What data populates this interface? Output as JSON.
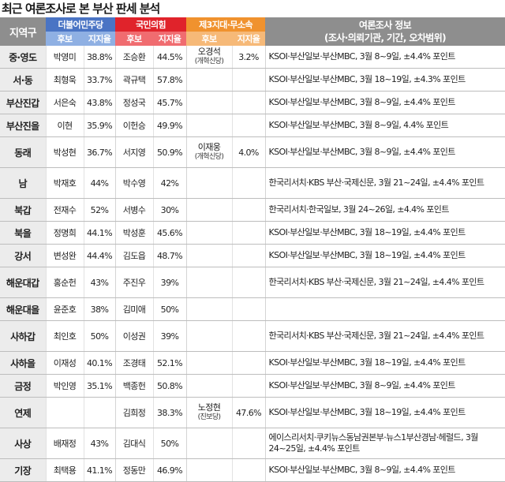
{
  "title": "최근 여론조사로 본 부산 판세 분석",
  "headers": {
    "region": "지역구",
    "dem": "더불어민주당",
    "ppp": "국민의힘",
    "third": "제3지대·무소속",
    "info_line1": "여론조사 정보",
    "info_line2": "(조사·의뢰기관, 기간, 오차범위)",
    "candidate": "후보",
    "support": "지지율"
  },
  "colors": {
    "dem": "#4a74c4",
    "ppp": "#e0232b",
    "third": "#f0922e",
    "header_gray": "#8e8e8e"
  },
  "rows": [
    {
      "region": "중·영도",
      "dem_name": "박영미",
      "dem_pct": "38.8%",
      "ppp_name": "조승환",
      "ppp_pct": "44.5%",
      "third_name": "오경석",
      "third_party": "(개혁신당)",
      "third_pct": "3.2%",
      "info": "KSOI·부산일보·부산MBC, 3월 8~9일, ±4.4% 포인트"
    },
    {
      "region": "서·동",
      "dem_name": "최형욱",
      "dem_pct": "33.7%",
      "ppp_name": "곽규택",
      "ppp_pct": "57.8%",
      "third_name": "",
      "third_party": "",
      "third_pct": "",
      "info": "KSOI·부산일보·부산MBC, 3월 18~19일, ±4.3% 포인트"
    },
    {
      "region": "부산진갑",
      "dem_name": "서은숙",
      "dem_pct": "43.8%",
      "ppp_name": "정성국",
      "ppp_pct": "45.7%",
      "third_name": "",
      "third_party": "",
      "third_pct": "",
      "info": "KSOI·부산일보·부산MBC, 3월 8~9일, ±4.4% 포인트"
    },
    {
      "region": "부산진을",
      "dem_name": "이현",
      "dem_pct": "35.9%",
      "ppp_name": "이헌승",
      "ppp_pct": "49.9%",
      "third_name": "",
      "third_party": "",
      "third_pct": "",
      "info": "KSOI·부산일보·부산MBC, 3월 8~9일, 4.4% 포인트"
    },
    {
      "region": "동래",
      "dem_name": "박성현",
      "dem_pct": "36.7%",
      "ppp_name": "서지영",
      "ppp_pct": "50.9%",
      "third_name": "이재웅",
      "third_party": "(개혁신당)",
      "third_pct": "4.0%",
      "info": "KSOI·부산일보·부산MBC, 3월 8~9일, ±4.4% 포인트",
      "tall": true
    },
    {
      "region": "남",
      "dem_name": "박재호",
      "dem_pct": "44%",
      "ppp_name": "박수영",
      "ppp_pct": "42%",
      "third_name": "",
      "third_party": "",
      "third_pct": "",
      "info": "한국리서치·KBS 부산·국제신문, 3월 21~24일, ±4.4% 포인트",
      "tall": true
    },
    {
      "region": "북갑",
      "dem_name": "전재수",
      "dem_pct": "52%",
      "ppp_name": "서병수",
      "ppp_pct": "30%",
      "third_name": "",
      "third_party": "",
      "third_pct": "",
      "info": "한국리서치·한국일보, 3월 24~26일, ±4.4% 포인트"
    },
    {
      "region": "북을",
      "dem_name": "정명희",
      "dem_pct": "44.1%",
      "ppp_name": "박성훈",
      "ppp_pct": "45.6%",
      "third_name": "",
      "third_party": "",
      "third_pct": "",
      "info": "KSOI·부산일보·부산MBC, 3월 18~19일, ±4.4% 포인트"
    },
    {
      "region": "강서",
      "dem_name": "변성완",
      "dem_pct": "44.4%",
      "ppp_name": "김도읍",
      "ppp_pct": "48.7%",
      "third_name": "",
      "third_party": "",
      "third_pct": "",
      "info": "KSOI·부산일보·부산MBC, 3월 18~19일, ±4.4% 포인트"
    },
    {
      "region": "해운대갑",
      "dem_name": "홍순헌",
      "dem_pct": "43%",
      "ppp_name": "주진우",
      "ppp_pct": "39%",
      "third_name": "",
      "third_party": "",
      "third_pct": "",
      "info": "한국리서치·KBS 부산·국제신문, 3월 21~24일, ±4.4% 포인트",
      "tall": true
    },
    {
      "region": "해운대을",
      "dem_name": "윤준호",
      "dem_pct": "38%",
      "ppp_name": "김미애",
      "ppp_pct": "50%",
      "third_name": "",
      "third_party": "",
      "third_pct": "",
      "info": ""
    },
    {
      "region": "사하갑",
      "dem_name": "최인호",
      "dem_pct": "50%",
      "ppp_name": "이성권",
      "ppp_pct": "39%",
      "third_name": "",
      "third_party": "",
      "third_pct": "",
      "info": "한국리서치·KBS 부산·국제신문, 3월 21~24일, ±4.4% 포인트",
      "tall": true
    },
    {
      "region": "사하을",
      "dem_name": "이재성",
      "dem_pct": "40.1%",
      "ppp_name": "조경태",
      "ppp_pct": "52.1%",
      "third_name": "",
      "third_party": "",
      "third_pct": "",
      "info": "KSOI·부산일보·부산MBC, 3월 18~19일, ±4.4% 포인트"
    },
    {
      "region": "금정",
      "dem_name": "박인영",
      "dem_pct": "35.1%",
      "ppp_name": "백종헌",
      "ppp_pct": "50.8%",
      "third_name": "",
      "third_party": "",
      "third_pct": "",
      "info": "KSOI·부산일보·부산MBC, 3월 8~9일, ±4.4% 포인트"
    },
    {
      "region": "연제",
      "dem_name": "",
      "dem_pct": "",
      "ppp_name": "김희정",
      "ppp_pct": "38.3%",
      "third_name": "노정현",
      "third_party": "(진보당)",
      "third_pct": "47.6%",
      "info": "KSOI·부산일보·부산MBC, 3월 18~19일, ±4.4% 포인트",
      "tall": true
    },
    {
      "region": "사상",
      "dem_name": "배재정",
      "dem_pct": "43%",
      "ppp_name": "김대식",
      "ppp_pct": "50%",
      "third_name": "",
      "third_party": "",
      "third_pct": "",
      "info": "에이스리서치·쿠키뉴스동남권본부·뉴스1부산경남·헤럴드, 3월 24~25일, ±4.4% 포인트",
      "tall": true
    },
    {
      "region": "기장",
      "dem_name": "최택용",
      "dem_pct": "41.1%",
      "ppp_name": "정동만",
      "ppp_pct": "46.9%",
      "third_name": "",
      "third_party": "",
      "third_pct": "",
      "info": "KSOI·부산일보·부산MBC, 3월 8~9일, ±4.4% 포인트"
    }
  ]
}
